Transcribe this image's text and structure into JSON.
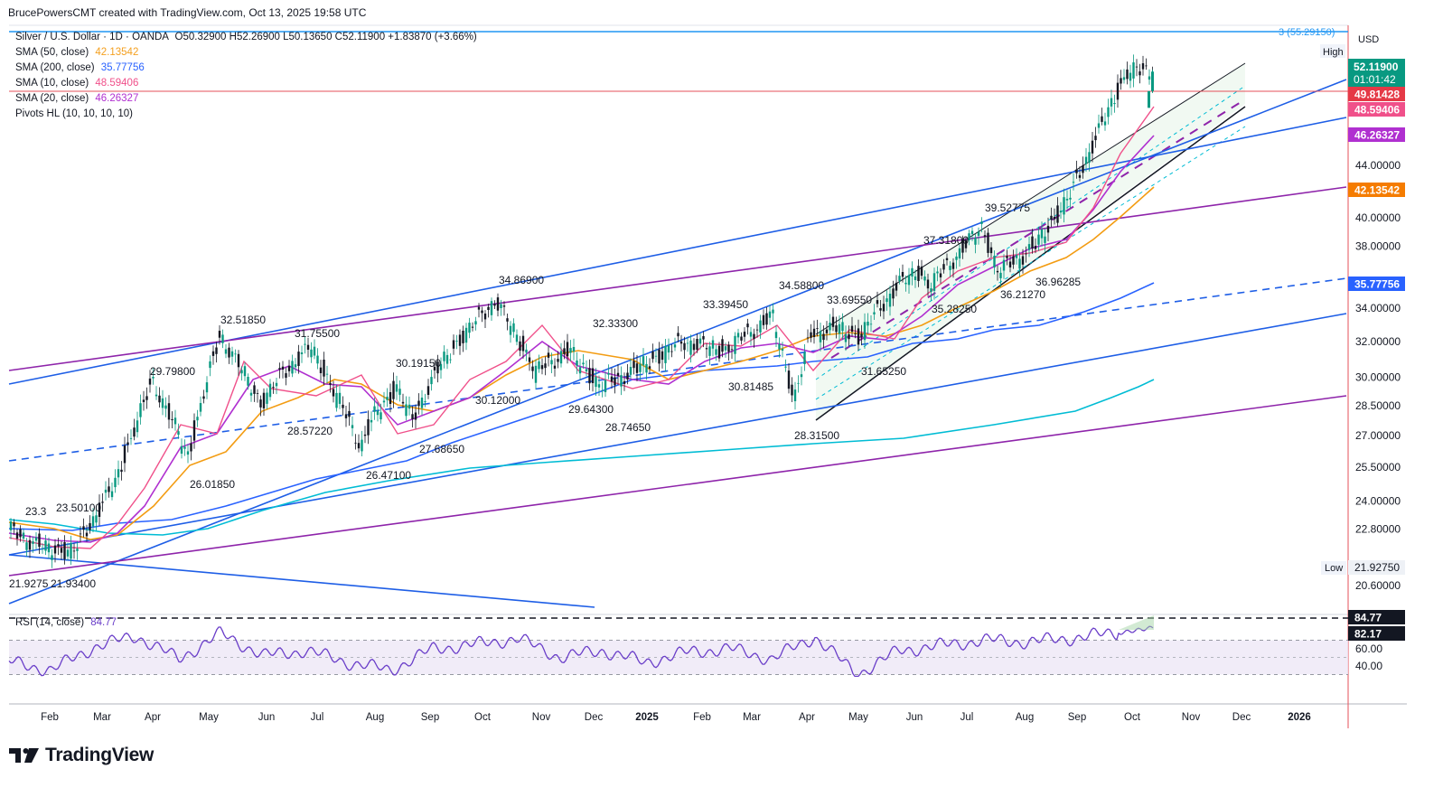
{
  "header": {
    "text": "BrucePowersCMT created with TradingView.com, Oct 13, 2025 19:58 UTC"
  },
  "legend": {
    "title": "Silver / U.S. Dollar · 1D · OANDA",
    "ohlc": "O50.32900 H52.26900 L50.13650 C52.11900 +1.83870 (+3.66%)",
    "sma50": {
      "label": "SMA (50, close)",
      "value": "42.13542",
      "color": "#f4a020"
    },
    "sma200": {
      "label": "SMA (200, close)",
      "value": "35.77756",
      "color": "#2962ff"
    },
    "sma10": {
      "label": "SMA (10, close)",
      "value": "48.59406",
      "color": "#f0508a"
    },
    "sma20": {
      "label": "SMA (20, close)",
      "value": "46.26327",
      "color": "#b030d0"
    },
    "pivots": "Pivots HL (10, 10, 10, 10)",
    "rsi_label": "RSI (14, close)",
    "rsi_value": "84.77"
  },
  "colors": {
    "up": "#089981",
    "down": "#131722",
    "sma200": "#2962ff",
    "sma50": "#f39c12",
    "sma10": "#f0508a",
    "sma20": "#b030d0",
    "teal": "#00bcd4",
    "trend_blue": "#1e5ee6",
    "trend_purple": "#8e24aa",
    "rsi": "#6a3ec9",
    "rsi_bg": "#ede7f6",
    "red_line": "#e5505a"
  },
  "chart_data": {
    "type": "candlestick",
    "title": "Silver / U.S. Dollar · 1D · OANDA",
    "currency": "USD",
    "y_scale": "log",
    "ylim": [
      20.0,
      56.0
    ],
    "y_ticks": [
      "20.60000",
      "22.80000",
      "24.00000",
      "25.50000",
      "27.00000",
      "28.50000",
      "30.00000",
      "32.00000",
      "34.00000",
      "38.00000",
      "40.00000",
      "44.00000"
    ],
    "x_ticks": [
      "Feb",
      "Mar",
      "Apr",
      "May",
      "Jun",
      "Jul",
      "Aug",
      "Sep",
      "Oct",
      "Nov",
      "Dec",
      "2025",
      "Feb",
      "Mar",
      "Apr",
      "May",
      "Jun",
      "Jul",
      "Aug",
      "Sep",
      "Oct",
      "Nov",
      "Dec",
      "2026"
    ],
    "series_anchor_dates": [
      "2024-01-22",
      "2024-02-12",
      "2024-02-28",
      "2024-03-22",
      "2024-04-12",
      "2024-05-02",
      "2024-05-20",
      "2024-06-12",
      "2024-06-24",
      "2024-07-10",
      "2024-08-07",
      "2024-08-15",
      "2024-08-28",
      "2024-09-05",
      "2024-09-18",
      "2024-10-01",
      "2024-10-22",
      "2024-11-14",
      "2024-12-02",
      "2024-12-20",
      "2025-01-09",
      "2025-02-05",
      "2025-02-28",
      "2025-03-27",
      "2025-04-08",
      "2025-04-18",
      "2025-05-01",
      "2025-05-15",
      "2025-06-06",
      "2025-06-17",
      "2025-06-24",
      "2025-07-14",
      "2025-07-23",
      "2025-08-01",
      "2025-08-22",
      "2025-09-10",
      "2025-09-26",
      "2025-10-13"
    ],
    "price_close": [
      22.8,
      22.0,
      21.93,
      24.8,
      29.8,
      26.0,
      32.4,
      28.6,
      30.2,
      31.7,
      26.5,
      28.0,
      29.5,
      27.7,
      30.2,
      32.0,
      34.5,
      30.3,
      31.5,
      29.5,
      30.4,
      32.0,
      31.5,
      33.5,
      28.8,
      32.5,
      32.8,
      32.3,
      35.5,
      36.3,
      35.4,
      38.1,
      39.4,
      36.3,
      38.0,
      41.5,
      46.5,
      52.119
    ],
    "pivot_highs": [
      "23.50100",
      "29.79800",
      "32.51850",
      "31.75500",
      "30.19150",
      "34.86900",
      "32.33300",
      "33.39450",
      "34.58800",
      "33.69550",
      "37.31800",
      "39.52775"
    ],
    "pivot_lows": [
      "21.93400",
      "26.01850",
      "28.57220",
      "26.47100",
      "27.68650",
      "30.12000",
      "29.64300",
      "28.74650",
      "30.81485",
      "28.31500",
      "31.65250",
      "35.28250",
      "36.21270",
      "36.96285"
    ],
    "left_edge_labels": [
      "23.3",
      "21.9275"
    ],
    "price_labels": {
      "target": "3 (55.29150)",
      "high_tag": "High",
      "last": "52.11900",
      "countdown": "01:01:42",
      "resistance": "49.81428",
      "sma10": "48.59406",
      "sma20": "46.26327",
      "sma50": "42.13542",
      "sma200": "35.77756",
      "low_tag": "Low",
      "low": "21.92750"
    },
    "rsi": {
      "label": "RSI (14, close)",
      "value": "84.77",
      "value2": "82.17",
      "ticks": [
        "60.00",
        "40.00"
      ],
      "upper": 70,
      "lower": 30,
      "values": [
        45,
        35,
        62,
        75,
        48,
        78,
        52,
        58,
        44,
        35,
        60,
        65,
        72,
        50,
        58,
        44,
        56,
        60,
        48,
        74,
        30,
        58,
        64,
        70,
        68,
        72,
        78,
        85
      ]
    }
  },
  "brand": "TradingView"
}
